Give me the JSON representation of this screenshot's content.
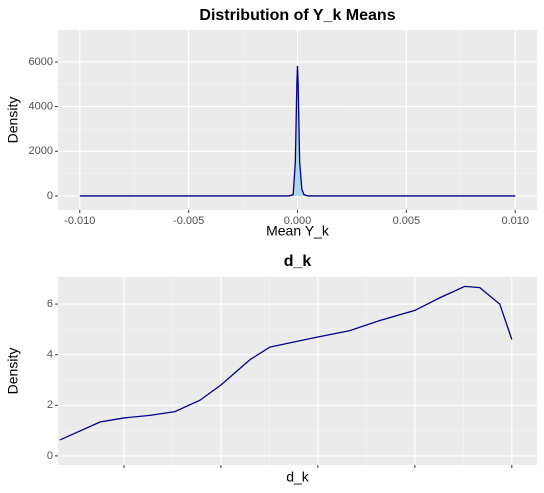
{
  "chart_data": [
    {
      "type": "density",
      "title": "Distribution of Y_k Means",
      "xlabel": "Mean Y_k",
      "ylabel": "Density",
      "series": [
        {
          "color": "#00008b",
          "fill": "#add8e6",
          "x": [
            -0.01,
            -0.0004,
            -0.0002,
            -0.0001,
            -3e-05,
            0,
            3e-05,
            0.0001,
            0.0002,
            0.0003,
            0.0005,
            0.01
          ],
          "y": [
            0,
            0,
            50,
            1500,
            5000,
            5820,
            5000,
            1500,
            300,
            50,
            0,
            0
          ]
        }
      ],
      "xlim": [
        -0.011,
        0.011
      ],
      "xticks": [
        {
          "value": -0.01,
          "label": "-0.010"
        },
        {
          "value": -0.005,
          "label": "-0.005"
        },
        {
          "value": 0,
          "label": "0.000"
        },
        {
          "value": 0.005,
          "label": "0.005"
        },
        {
          "value": 0.01,
          "label": "0.010"
        }
      ],
      "ylim": [
        -630,
        7430
      ],
      "yticks": [
        0,
        2000,
        4000,
        6000
      ],
      "grid": true
    },
    {
      "type": "density",
      "title": "d_k",
      "xlabel": "d_k",
      "ylabel": "Density",
      "series": [
        {
          "color": "#00008b",
          "x": [
            0.34,
            0.753,
            1,
            1.268,
            1.526,
            1.784,
            2,
            2.299,
            2.505,
            2.814,
            3,
            3.33,
            3.639,
            4,
            4.258,
            4.515,
            4.67,
            4.876,
            5
          ],
          "y": [
            0.63,
            1.34,
            1.5,
            1.6,
            1.75,
            2.2,
            2.8,
            3.8,
            4.3,
            4.55,
            4.7,
            4.95,
            5.35,
            5.75,
            6.25,
            6.7,
            6.65,
            6.0,
            4.6
          ]
        }
      ],
      "xlim": [
        0.32,
        5.26
      ],
      "xticks": [
        1,
        2,
        3,
        4,
        5
      ],
      "ylim": [
        -0.36,
        7.07
      ],
      "yticks": [
        0,
        2,
        4,
        6
      ],
      "grid": true
    }
  ]
}
